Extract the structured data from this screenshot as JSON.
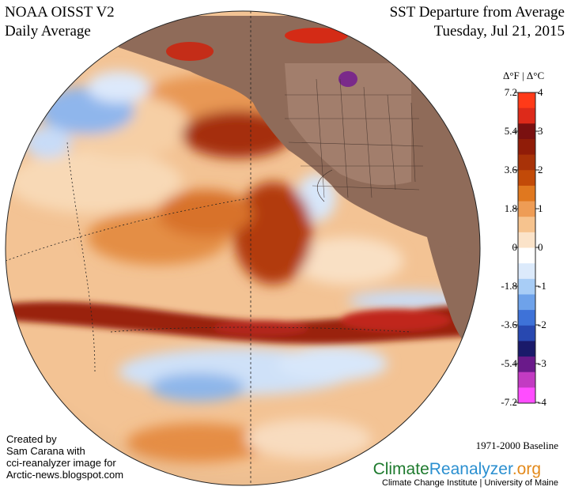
{
  "header": {
    "dataset": "NOAA OISST V2",
    "period": "Daily Average",
    "metric": "SST Departure from Average",
    "date": "Tuesday, Jul 21, 2015"
  },
  "legend": {
    "header": "Δ°F  |  Δ°C",
    "fahrenheit_ticks": [
      "7.2",
      "5.4",
      "3.6",
      "1.8",
      "0",
      "-1.8",
      "-3.6",
      "-5.4",
      "-7.2"
    ],
    "celsius_ticks": [
      "4",
      "3",
      "2",
      "1",
      "0",
      "-1",
      "-2",
      "-3",
      "-4"
    ],
    "colors": [
      "#ff4dff",
      "#c23bc2",
      "#6a1a8a",
      "#1a1a6a",
      "#2848b0",
      "#3e72d8",
      "#6ea2ea",
      "#a8cdf6",
      "#dceafb",
      "#ffffff",
      "#fbe3c9",
      "#f6c38e",
      "#ee9c55",
      "#e0781f",
      "#c24a08",
      "#a83208",
      "#901c08",
      "#7a1010",
      "#dd2a1a",
      "#ff3a18"
    ]
  },
  "credit": {
    "line1": "Created by",
    "line2": "Sam Carana with",
    "line3": "cci-reanalyzer image for",
    "line4": "Arctic-news.blogspot.com"
  },
  "footer": {
    "baseline": "1971-2000 Baseline",
    "brand_part1": "Climate",
    "brand_part2": "Reanalyzer",
    "brand_part3": ".org",
    "institution": "Climate Change Institute | University of Maine"
  }
}
